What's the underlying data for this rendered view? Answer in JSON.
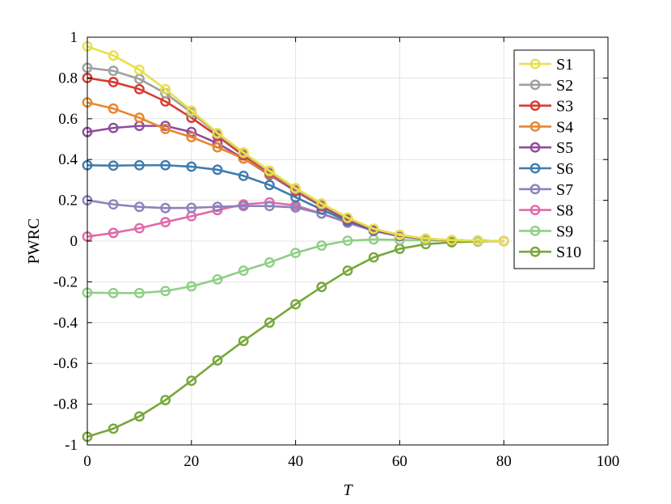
{
  "chart_data": {
    "type": "line",
    "title": "",
    "xlabel": "T",
    "ylabel": "PWRC",
    "xlim": [
      0,
      100
    ],
    "ylim": [
      -1,
      1
    ],
    "grid": true,
    "legend_position": "top-right",
    "x_ticks": [
      "0",
      "20",
      "40",
      "60",
      "80",
      "100"
    ],
    "y_ticks": [
      "-1",
      "-0.8",
      "-0.6",
      "-0.4",
      "-0.2",
      "0",
      "0.2",
      "0.4",
      "0.6",
      "0.8",
      "1"
    ],
    "x": [
      0,
      5,
      10,
      15,
      20,
      25,
      30,
      35,
      40,
      45,
      50,
      55,
      60,
      65,
      70,
      75,
      80
    ],
    "series": [
      {
        "name": "S1",
        "color": "#e8e04a",
        "values": [
          0.955,
          0.91,
          0.84,
          0.745,
          0.64,
          0.53,
          0.435,
          0.345,
          0.26,
          0.185,
          0.115,
          0.06,
          0.03,
          0.012,
          0.005,
          0.002,
          0.0
        ]
      },
      {
        "name": "S2",
        "color": "#a0a0a0",
        "values": [
          0.85,
          0.835,
          0.795,
          0.725,
          0.63,
          0.525,
          0.43,
          0.34,
          0.255,
          0.18,
          0.113,
          0.06,
          0.03,
          0.012,
          0.005,
          0.002,
          0.0
        ]
      },
      {
        "name": "S3",
        "color": "#d63c34",
        "values": [
          0.8,
          0.78,
          0.745,
          0.685,
          0.605,
          0.515,
          0.42,
          0.335,
          0.25,
          0.175,
          0.11,
          0.058,
          0.028,
          0.011,
          0.004,
          0.002,
          0.0
        ]
      },
      {
        "name": "S4",
        "color": "#e7862e",
        "values": [
          0.68,
          0.65,
          0.605,
          0.55,
          0.51,
          0.46,
          0.405,
          0.33,
          0.25,
          0.175,
          0.11,
          0.058,
          0.028,
          0.011,
          0.004,
          0.002,
          0.0
        ]
      },
      {
        "name": "S5",
        "color": "#8f4d9e",
        "values": [
          0.535,
          0.555,
          0.565,
          0.565,
          0.535,
          0.48,
          0.405,
          0.325,
          0.245,
          0.17,
          0.105,
          0.055,
          0.027,
          0.011,
          0.004,
          0.002,
          0.0
        ]
      },
      {
        "name": "S6",
        "color": "#3f7cad",
        "values": [
          0.372,
          0.37,
          0.372,
          0.372,
          0.365,
          0.35,
          0.32,
          0.275,
          0.215,
          0.155,
          0.098,
          0.052,
          0.025,
          0.01,
          0.004,
          0.002,
          0.0
        ]
      },
      {
        "name": "S7",
        "color": "#8e82bb",
        "values": [
          0.2,
          0.18,
          0.168,
          0.162,
          0.163,
          0.168,
          0.172,
          0.172,
          0.165,
          0.135,
          0.092,
          0.05,
          0.024,
          0.01,
          0.004,
          0.002,
          0.0
        ]
      },
      {
        "name": "S8",
        "color": "#df6ba9",
        "values": [
          0.022,
          0.04,
          0.063,
          0.093,
          0.122,
          0.152,
          0.18,
          0.19,
          0.175,
          0.135,
          0.09,
          0.05,
          0.024,
          0.01,
          0.004,
          0.002,
          0.0
        ]
      },
      {
        "name": "S9",
        "color": "#8fcf86",
        "values": [
          -0.253,
          -0.255,
          -0.255,
          -0.245,
          -0.222,
          -0.188,
          -0.145,
          -0.105,
          -0.058,
          -0.022,
          0.002,
          0.008,
          0.006,
          0.003,
          0.002,
          0.001,
          0.0
        ]
      },
      {
        "name": "S10",
        "color": "#77a73a",
        "values": [
          -0.96,
          -0.92,
          -0.86,
          -0.78,
          -0.685,
          -0.585,
          -0.49,
          -0.4,
          -0.31,
          -0.225,
          -0.145,
          -0.08,
          -0.038,
          -0.015,
          -0.006,
          -0.002,
          0.0
        ]
      }
    ]
  }
}
